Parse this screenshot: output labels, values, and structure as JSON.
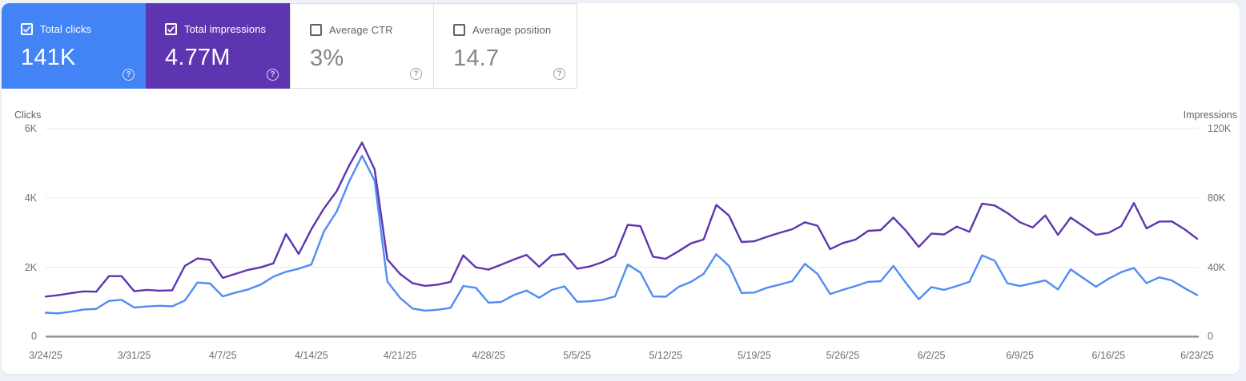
{
  "panel": {
    "name": "Search performance panel"
  },
  "tiles": [
    {
      "label": "Total clicks",
      "value": "141K",
      "selected": true,
      "bg": "#4284f5"
    },
    {
      "label": "Total impressions",
      "value": "4.77M",
      "selected": true,
      "bg": "#5e35b1"
    },
    {
      "label": "Average CTR",
      "value": "3%",
      "selected": false,
      "bg": "#ffffff"
    },
    {
      "label": "Average position",
      "value": "14.7",
      "selected": false,
      "bg": "#ffffff"
    }
  ],
  "help_icon": "?",
  "chart_data": {
    "type": "line",
    "points": 92,
    "x_tick_labels": [
      "3/24/25",
      "3/31/25",
      "4/7/25",
      "4/14/25",
      "4/21/25",
      "4/28/25",
      "5/5/25",
      "5/12/25",
      "5/19/25",
      "5/26/25",
      "6/2/25",
      "6/9/25",
      "6/16/25",
      "6/23/25"
    ],
    "x_tick_every": 7,
    "left_axis": {
      "title": "Clicks",
      "max": 6000,
      "ticks": [
        {
          "label": "6K",
          "value": 6000
        },
        {
          "label": "4K",
          "value": 4000
        },
        {
          "label": "2K",
          "value": 2000
        },
        {
          "label": "0",
          "value": 0
        }
      ]
    },
    "right_axis": {
      "title": "Impressions",
      "max": 120000,
      "ticks": [
        {
          "label": "120K",
          "value": 120000
        },
        {
          "label": "80K",
          "value": 80000
        },
        {
          "label": "40K",
          "value": 40000
        },
        {
          "label": "0",
          "value": 0
        }
      ]
    },
    "grid_color": "#e9eaee",
    "zero_line_color": "#8c9196",
    "series": [
      {
        "name": "Impressions",
        "axis": "right",
        "color": "#5e35b1",
        "values": [
          23100,
          23900,
          25100,
          26100,
          25900,
          34900,
          34900,
          26200,
          27000,
          26500,
          26700,
          40800,
          45100,
          44300,
          33900,
          36200,
          38500,
          40000,
          42300,
          59200,
          47700,
          62000,
          74000,
          84000,
          99000,
          112000,
          96500,
          44600,
          36200,
          30800,
          29300,
          30000,
          31600,
          46900,
          40000,
          38700,
          41500,
          44500,
          47200,
          40300,
          46900,
          47700,
          39200,
          40500,
          43000,
          46600,
          64500,
          63800,
          46100,
          44900,
          49200,
          53800,
          56100,
          76000,
          69900,
          54600,
          55000,
          57600,
          59900,
          62000,
          66000,
          64000,
          50500,
          54000,
          56000,
          61000,
          61500,
          68700,
          61000,
          51800,
          59500,
          59000,
          63500,
          60500,
          76800,
          75700,
          71400,
          66000,
          63000,
          69900,
          58700,
          68700,
          63800,
          58800,
          59900,
          63800,
          77100,
          62500,
          66400,
          66500,
          62000,
          56500
        ]
      },
      {
        "name": "Clicks",
        "axis": "left",
        "color": "#4f8df5",
        "values": [
          690,
          670,
          720,
          780,
          800,
          1030,
          1060,
          840,
          870,
          890,
          875,
          1040,
          1560,
          1530,
          1160,
          1270,
          1360,
          1500,
          1730,
          1870,
          1960,
          2080,
          3040,
          3610,
          4490,
          5220,
          4500,
          1590,
          1120,
          810,
          750,
          775,
          830,
          1460,
          1410,
          980,
          1000,
          1200,
          1330,
          1120,
          1350,
          1450,
          1005,
          1020,
          1060,
          1160,
          2080,
          1850,
          1160,
          1150,
          1430,
          1580,
          1810,
          2380,
          2040,
          1260,
          1270,
          1410,
          1500,
          1600,
          2100,
          1810,
          1230,
          1350,
          1460,
          1580,
          1600,
          2040,
          1540,
          1080,
          1430,
          1350,
          1460,
          1580,
          2345,
          2190,
          1540,
          1460,
          1540,
          1620,
          1360,
          1940,
          1690,
          1440,
          1670,
          1860,
          1980,
          1540,
          1710,
          1620,
          1400,
          1200
        ]
      }
    ]
  }
}
